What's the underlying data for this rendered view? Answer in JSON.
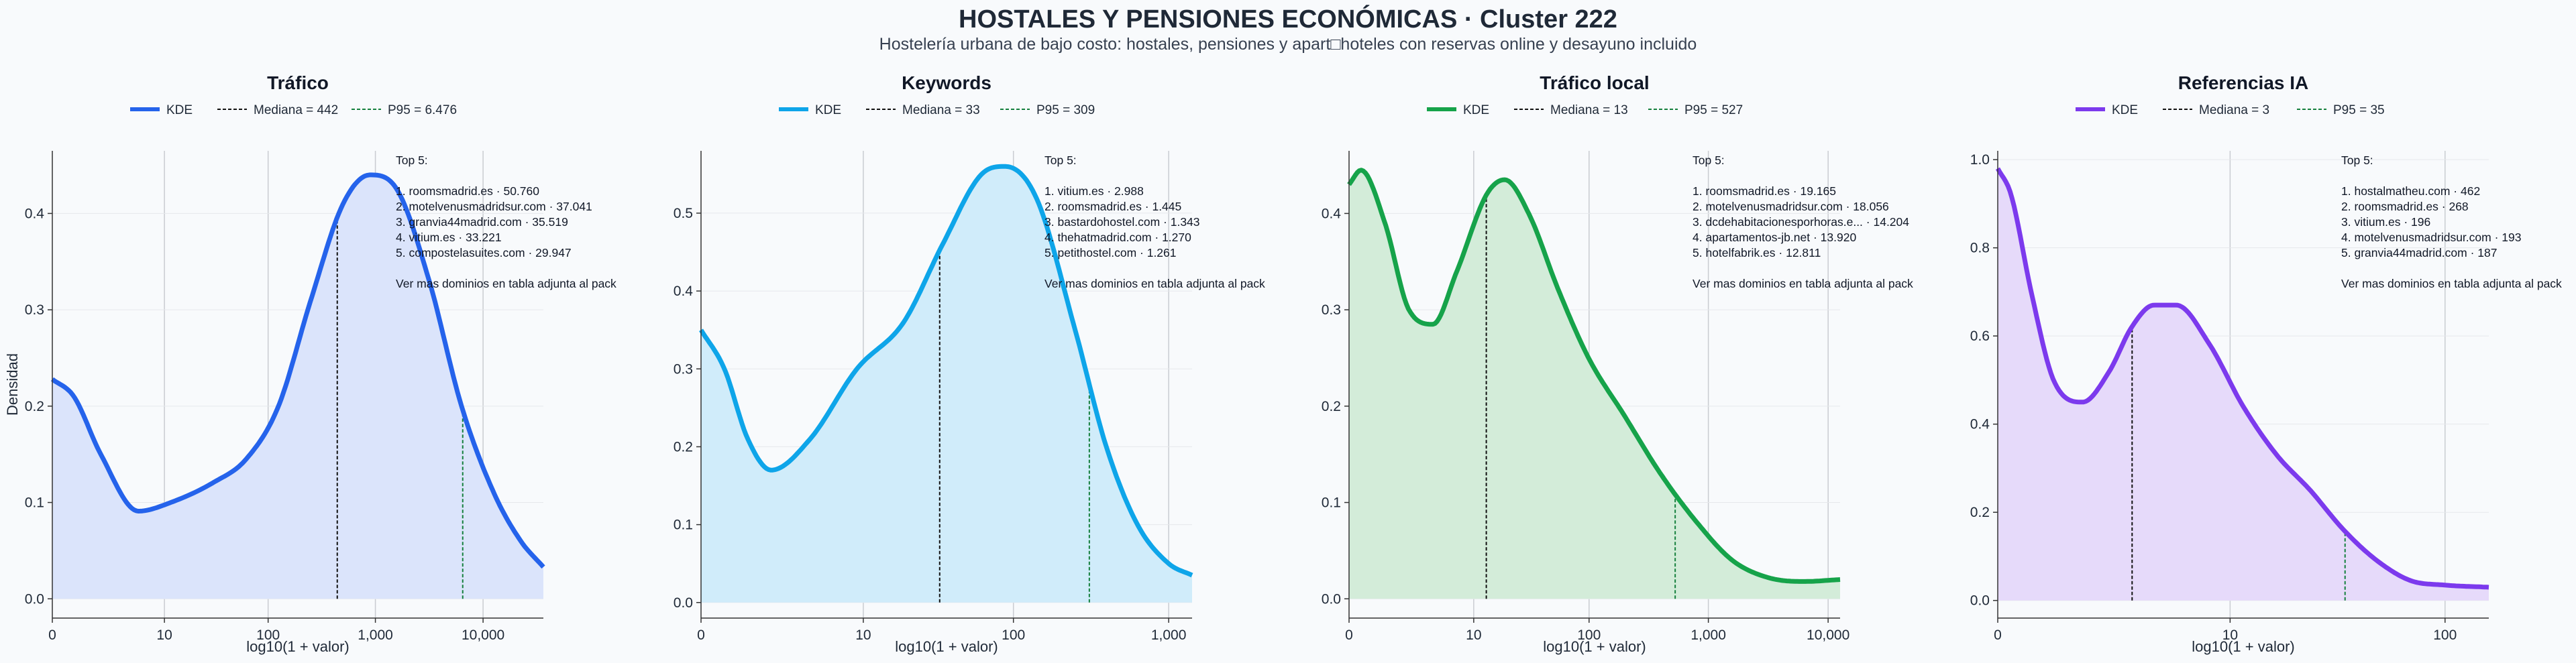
{
  "title": "HOSTALES Y PENSIONES ECONÓMICAS · Cluster 222",
  "subtitle": "Hostelería urbana de bajo costo: hostales, pensiones y apart□hoteles con reservas online y desayuno incluido",
  "chart_data": [
    {
      "type": "area",
      "title": "Tráfico",
      "xlabel": "log10(1 + valor)",
      "ylabel": "Densidad",
      "color": "#2563eb",
      "fill": "#dbe4fb",
      "xlim": [
        0,
        4.56
      ],
      "ylim": [
        -0.02,
        0.465
      ],
      "xticks": [
        {
          "v": 0,
          "label": "0"
        },
        {
          "v": 1.041,
          "label": "10"
        },
        {
          "v": 2.004,
          "label": "100"
        },
        {
          "v": 3.0,
          "label": "1,000"
        },
        {
          "v": 4.0,
          "label": "10,000"
        }
      ],
      "yticks": [
        {
          "v": 0,
          "label": "0.0"
        },
        {
          "v": 0.1,
          "label": "0.1"
        },
        {
          "v": 0.2,
          "label": "0.2"
        },
        {
          "v": 0.3,
          "label": "0.3"
        },
        {
          "v": 0.4,
          "label": "0.4"
        }
      ],
      "kde": {
        "x": [
          0,
          0.2,
          0.45,
          0.8,
          1.1,
          1.5,
          1.8,
          2.1,
          2.4,
          2.7,
          2.95,
          3.2,
          3.5,
          3.8,
          4.1,
          4.35,
          4.56
        ],
        "y": [
          0.228,
          0.21,
          0.15,
          0.091,
          0.1,
          0.121,
          0.145,
          0.2,
          0.31,
          0.41,
          0.44,
          0.425,
          0.33,
          0.2,
          0.11,
          0.06,
          0.033
        ]
      },
      "median": {
        "x": 2.646,
        "label": "Mediana = 442"
      },
      "p95": {
        "x": 3.811,
        "label": "P95 = 6.476"
      },
      "legend": [
        "KDE",
        "Mediana = 442",
        "P95 = 6.476"
      ],
      "top5": [
        "Top 5:",
        "",
        "1. roomsmadrid.es · 50.760",
        "2. motelvenusmadridsur.com · 37.041",
        "3. granvia44madrid.com · 35.519",
        "4. vitium.es · 33.221",
        "5. compostelasuites.com · 29.947",
        "",
        "Ver mas dominios en tabla adjunta al pack"
      ]
    },
    {
      "type": "area",
      "title": "Keywords",
      "xlabel": "log10(1 + valor)",
      "ylabel": "",
      "color": "#0ea5e9",
      "fill": "#d0ecfa",
      "xlim": [
        0,
        3.15
      ],
      "ylim": [
        -0.02,
        0.58
      ],
      "xticks": [
        {
          "v": 0,
          "label": "0"
        },
        {
          "v": 1.041,
          "label": "10"
        },
        {
          "v": 2.004,
          "label": "100"
        },
        {
          "v": 3.0,
          "label": "1,000"
        }
      ],
      "yticks": [
        {
          "v": 0,
          "label": "0.0"
        },
        {
          "v": 0.1,
          "label": "0.1"
        },
        {
          "v": 0.2,
          "label": "0.2"
        },
        {
          "v": 0.3,
          "label": "0.3"
        },
        {
          "v": 0.4,
          "label": "0.4"
        },
        {
          "v": 0.5,
          "label": "0.5"
        }
      ],
      "kde": {
        "x": [
          0,
          0.15,
          0.3,
          0.45,
          0.7,
          1.0,
          1.3,
          1.55,
          1.8,
          1.95,
          2.15,
          2.4,
          2.6,
          2.8,
          3.0,
          3.15
        ],
        "y": [
          0.35,
          0.3,
          0.21,
          0.17,
          0.21,
          0.3,
          0.36,
          0.46,
          0.55,
          0.56,
          0.52,
          0.35,
          0.2,
          0.1,
          0.05,
          0.035
        ]
      },
      "median": {
        "x": 1.531,
        "label": "Mediana = 33"
      },
      "p95": {
        "x": 2.491,
        "label": "P95 = 309"
      },
      "legend": [
        "KDE",
        "Mediana = 33",
        "P95 = 309"
      ],
      "top5": [
        "Top 5:",
        "",
        "1. vitium.es · 2.988",
        "2. roomsmadrid.es · 1.445",
        "3. bastardohostel.com · 1.343",
        "4. thehatmadrid.com · 1.270",
        "5. petithostel.com · 1.261",
        "",
        "Ver mas dominios en tabla adjunta al pack"
      ]
    },
    {
      "type": "area",
      "title": "Tráfico local",
      "xlabel": "log10(1 + valor)",
      "ylabel": "",
      "color": "#16a34a",
      "fill": "#d3ecd9",
      "xlim": [
        0,
        4.1
      ],
      "ylim": [
        -0.02,
        0.465
      ],
      "xticks": [
        {
          "v": 0,
          "label": "0"
        },
        {
          "v": 1.041,
          "label": "10"
        },
        {
          "v": 2.004,
          "label": "100"
        },
        {
          "v": 3.0,
          "label": "1,000"
        },
        {
          "v": 4.0,
          "label": "10,000"
        }
      ],
      "yticks": [
        {
          "v": 0,
          "label": "0.0"
        },
        {
          "v": 0.1,
          "label": "0.1"
        },
        {
          "v": 0.2,
          "label": "0.2"
        },
        {
          "v": 0.3,
          "label": "0.3"
        },
        {
          "v": 0.4,
          "label": "0.4"
        }
      ],
      "kde": {
        "x": [
          0,
          0.1,
          0.3,
          0.5,
          0.7,
          0.9,
          1.15,
          1.3,
          1.5,
          1.75,
          2.0,
          2.3,
          2.6,
          2.9,
          3.2,
          3.5,
          3.8,
          4.1
        ],
        "y": [
          0.43,
          0.445,
          0.39,
          0.3,
          0.285,
          0.34,
          0.42,
          0.435,
          0.4,
          0.32,
          0.25,
          0.19,
          0.13,
          0.08,
          0.04,
          0.022,
          0.018,
          0.02
        ]
      },
      "median": {
        "x": 1.146,
        "label": "Mediana = 13"
      },
      "p95": {
        "x": 2.723,
        "label": "P95 = 527"
      },
      "legend": [
        "KDE",
        "Mediana = 13",
        "P95 = 527"
      ],
      "top5": [
        "Top 5:",
        "",
        "1. roomsmadrid.es · 19.165",
        "2. motelvenusmadridsur.com · 18.056",
        "3. dcdehabitacionesporhoras.e... · 14.204",
        "4. apartamentos-jb.net · 13.920",
        "5. hotelfabrik.es · 12.811",
        "",
        "Ver mas dominios en tabla adjunta al pack"
      ]
    },
    {
      "type": "area",
      "title": "Referencias IA",
      "xlabel": "log10(1 + valor)",
      "ylabel": "",
      "color": "#7c3aed",
      "fill": "#e6dafa",
      "xlim": [
        0,
        2.2
      ],
      "ylim": [
        -0.04,
        1.02
      ],
      "xticks": [
        {
          "v": 0,
          "label": "0"
        },
        {
          "v": 1.041,
          "label": "10"
        },
        {
          "v": 2.004,
          "label": "100"
        }
      ],
      "yticks": [
        {
          "v": 0,
          "label": "0.0"
        },
        {
          "v": 0.2,
          "label": "0.2"
        },
        {
          "v": 0.4,
          "label": "0.4"
        },
        {
          "v": 0.6,
          "label": "0.6"
        },
        {
          "v": 0.8,
          "label": "0.8"
        },
        {
          "v": 1.0,
          "label": "1.0"
        }
      ],
      "kde": {
        "x": [
          0,
          0.06,
          0.15,
          0.25,
          0.38,
          0.5,
          0.6,
          0.7,
          0.8,
          0.95,
          1.1,
          1.25,
          1.4,
          1.55,
          1.7,
          1.85,
          2.0,
          2.2
        ],
        "y": [
          0.98,
          0.92,
          0.7,
          0.5,
          0.45,
          0.52,
          0.62,
          0.67,
          0.67,
          0.58,
          0.44,
          0.33,
          0.25,
          0.16,
          0.09,
          0.045,
          0.035,
          0.03
        ]
      },
      "median": {
        "x": 0.602,
        "label": "Mediana = 3"
      },
      "p95": {
        "x": 1.556,
        "label": "P95 = 35"
      },
      "legend": [
        "KDE",
        "Mediana = 3",
        "P95 = 35"
      ],
      "top5": [
        "Top 5:",
        "",
        "1. hostalmatheu.com · 462",
        "2. roomsmadrid.es · 268",
        "3. vitium.es · 196",
        "4. motelvenusmadridsur.com · 193",
        "5. granvia44madrid.com · 187",
        "",
        "Ver mas dominios en tabla adjunta al pack"
      ]
    }
  ]
}
